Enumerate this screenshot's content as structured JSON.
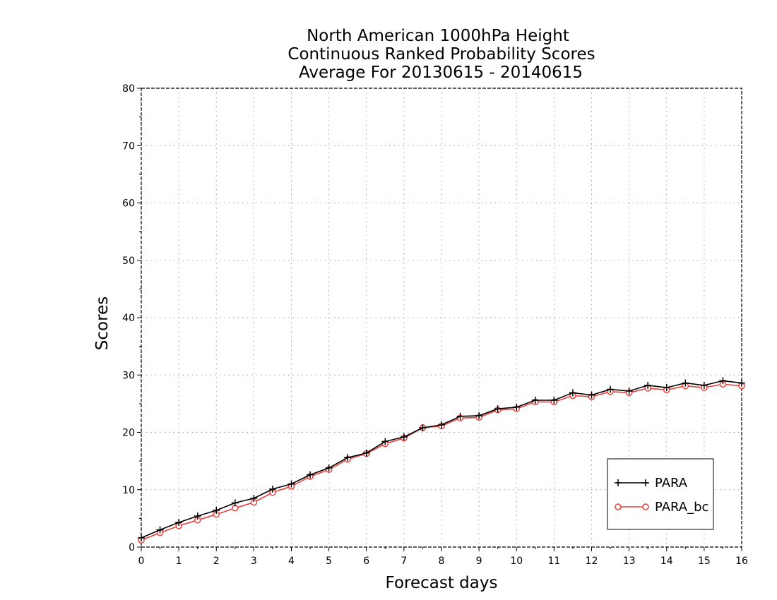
{
  "chart_data": {
    "type": "line",
    "title": [
      "North American 1000hPa Height",
      "Continuous Ranked Probability Scores",
      "Average For 20130615 - 20140615"
    ],
    "xlabel": "Forecast days",
    "ylabel": "Scores",
    "xlim": [
      0,
      16
    ],
    "ylim": [
      0,
      80
    ],
    "xticks": [
      0,
      1,
      2,
      3,
      4,
      5,
      6,
      7,
      8,
      9,
      10,
      11,
      12,
      13,
      14,
      15,
      16
    ],
    "yticks": [
      0,
      10,
      20,
      30,
      40,
      50,
      60,
      70,
      80
    ],
    "grid": true,
    "legend_position": "bottom-right",
    "x": [
      0,
      0.5,
      1,
      1.5,
      2,
      2.5,
      3,
      3.5,
      4,
      4.5,
      5,
      5.5,
      6,
      6.5,
      7,
      7.5,
      8,
      8.5,
      9,
      9.5,
      10,
      10.5,
      11,
      11.5,
      12,
      12.5,
      13,
      13.5,
      14,
      14.5,
      15,
      15.5,
      16
    ],
    "series": [
      {
        "name": "PARA",
        "color": "#000000",
        "marker": "plus",
        "values": [
          1.6,
          3.0,
          4.3,
          5.4,
          6.4,
          7.7,
          8.5,
          10.1,
          11.0,
          12.6,
          13.8,
          15.6,
          16.4,
          18.4,
          19.2,
          20.8,
          21.3,
          22.8,
          22.9,
          24.1,
          24.4,
          25.6,
          25.6,
          26.9,
          26.5,
          27.5,
          27.2,
          28.2,
          27.8,
          28.6,
          28.2,
          29.0,
          28.6
        ]
      },
      {
        "name": "PARA_bc",
        "color": "#e8413c",
        "marker": "circle",
        "values": [
          1.2,
          2.5,
          3.7,
          4.7,
          5.7,
          6.8,
          7.8,
          9.5,
          10.6,
          12.3,
          13.5,
          15.3,
          16.3,
          18.0,
          19.0,
          20.8,
          21.1,
          22.5,
          22.6,
          23.9,
          24.1,
          25.3,
          25.3,
          26.4,
          26.2,
          27.1,
          26.9,
          27.7,
          27.4,
          28.1,
          27.8,
          28.4,
          28.1
        ]
      }
    ]
  }
}
